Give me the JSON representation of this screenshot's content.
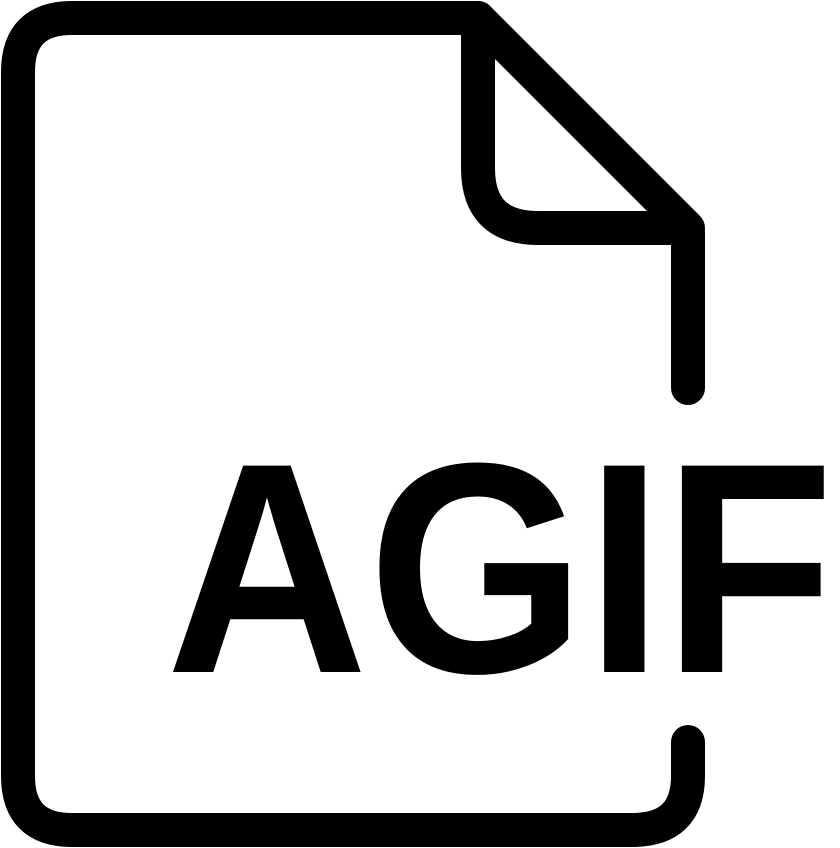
{
  "icon": {
    "name": "file-format-icon",
    "label": "AGIF",
    "stroke_color": "#000000",
    "background_color": "#ffffff"
  }
}
